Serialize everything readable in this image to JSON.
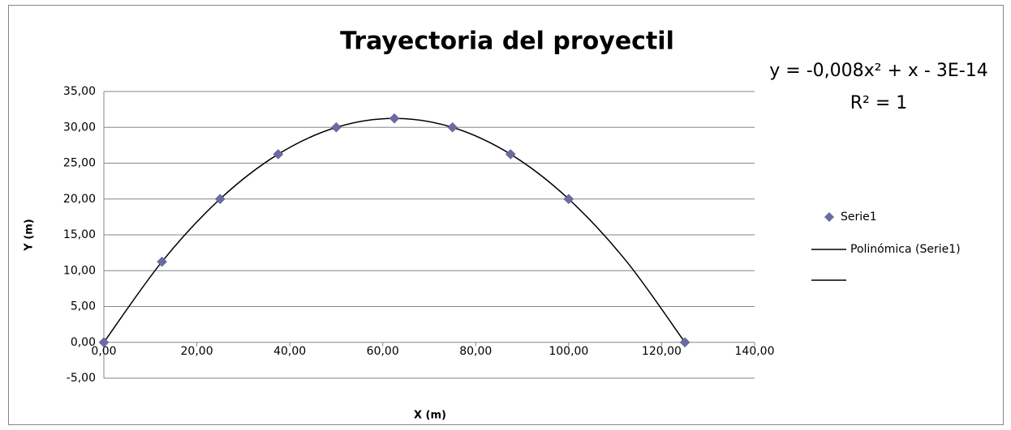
{
  "chart_data": {
    "type": "scatter",
    "title": "Trayectoria del proyectil",
    "x_label": "X (m)",
    "y_label": "Y (m)",
    "annotations": [
      "y = -0,008x² + x - 3E-14",
      "R² = 1"
    ],
    "series": [
      {
        "name": "Serie1",
        "color": "#6b6ba3",
        "marker": "diamond",
        "x": [
          0,
          12.5,
          25,
          37.5,
          50,
          62.5,
          75,
          87.5,
          100,
          125
        ],
        "values": [
          0,
          11.25,
          20,
          26.25,
          30,
          31.25,
          30,
          26.25,
          20,
          0
        ]
      },
      {
        "name": "Polinómica (Serie1)",
        "color": "#000000",
        "marker": "line",
        "x": [
          0,
          12.5,
          25,
          37.5,
          50,
          62.5,
          75,
          87.5,
          100,
          112.5,
          125
        ],
        "values": [
          0,
          11.25,
          20,
          26.25,
          30,
          31.25,
          30,
          26.25,
          20,
          11.25,
          0
        ]
      }
    ],
    "xlim": [
      0,
      140
    ],
    "xticks": [
      {
        "value": 0,
        "label": "0,00"
      },
      {
        "value": 20,
        "label": "20,00"
      },
      {
        "value": 40,
        "label": "40,00"
      },
      {
        "value": 60,
        "label": "60,00"
      },
      {
        "value": 80,
        "label": "80,00"
      },
      {
        "value": 100,
        "label": "100,00"
      },
      {
        "value": 120,
        "label": "120,00"
      },
      {
        "value": 140,
        "label": "140,00"
      }
    ],
    "ylim": [
      -5,
      35
    ],
    "yticks": [
      {
        "value": -5,
        "label": "-5,00"
      },
      {
        "value": 0,
        "label": "0,00"
      },
      {
        "value": 5,
        "label": "5,00"
      },
      {
        "value": 10,
        "label": "10,00"
      },
      {
        "value": 15,
        "label": "15,00"
      },
      {
        "value": 20,
        "label": "20,00"
      },
      {
        "value": 25,
        "label": "25,00"
      },
      {
        "value": 30,
        "label": "30,00"
      },
      {
        "value": 35,
        "label": "35,00"
      }
    ],
    "grid": true
  }
}
